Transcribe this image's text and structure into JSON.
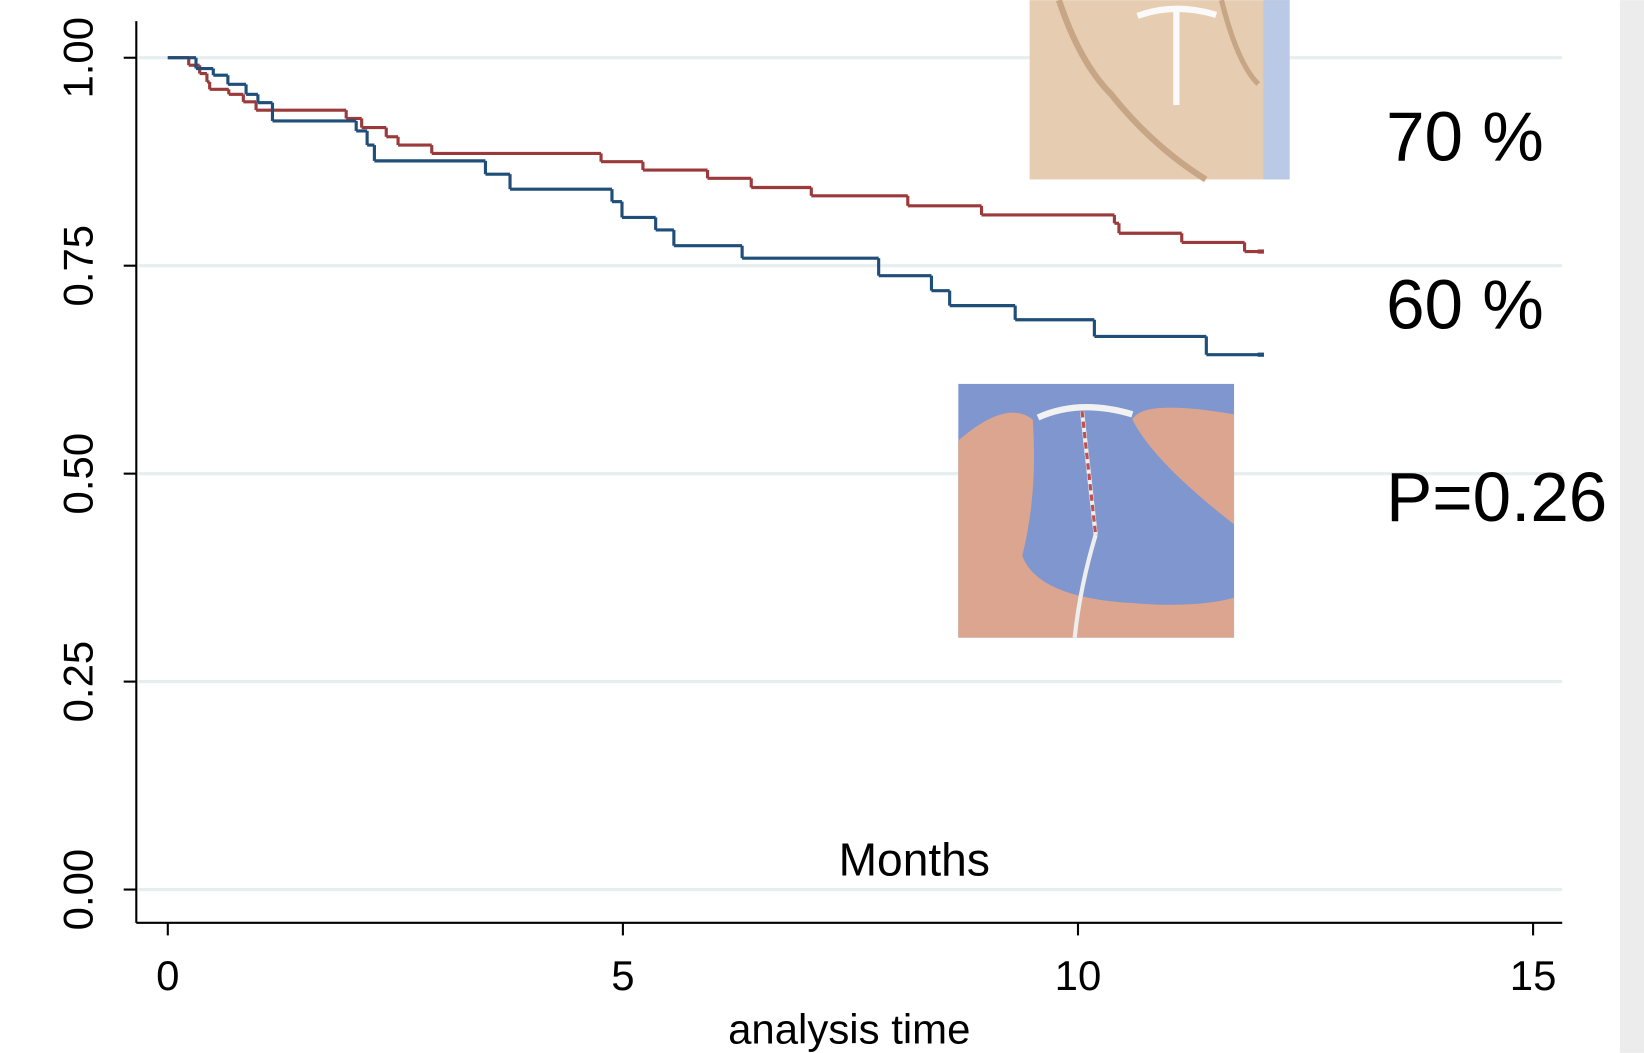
{
  "chart_data": {
    "type": "line",
    "step": true,
    "x_label": "analysis time",
    "annotations": [
      "Months",
      "70 %",
      "60 %",
      "P=0.26"
    ],
    "xlim": [
      -0.346,
      15.32
    ],
    "ylim": [
      -0.04,
      1.044
    ],
    "xticks": [
      0,
      5,
      10,
      15
    ],
    "yticks": [
      {
        "value": 0,
        "label": "0.00"
      },
      {
        "value": 0.25,
        "label": "0.25"
      },
      {
        "value": 0.5,
        "label": "0.50"
      },
      {
        "value": 0.75,
        "label": "0.75"
      },
      {
        "value": 1,
        "label": "1.00"
      }
    ],
    "grid": true,
    "series": [
      {
        "color": "#9b3a3a",
        "x": [
          0,
          0.23,
          0.35,
          0.43,
          0.46,
          0.67,
          0.83,
          0.97,
          1.96,
          2.13,
          2.4,
          2.53,
          2.9,
          4.76,
          5.22,
          5.93,
          6.41,
          7.07,
          8.13,
          8.94,
          10.4,
          10.45,
          11.14,
          11.83,
          12.02
        ],
        "values": [
          1,
          0.991,
          0.981,
          0.971,
          0.962,
          0.956,
          0.947,
          0.937,
          0.927,
          0.916,
          0.905,
          0.895,
          0.885,
          0.875,
          0.865,
          0.855,
          0.844,
          0.834,
          0.822,
          0.811,
          0.801,
          0.789,
          0.778,
          0.767,
          0.767
        ]
      },
      {
        "color": "#1f4e79",
        "x": [
          0,
          0.31,
          0.5,
          0.66,
          0.86,
          0.99,
          1.15,
          2.07,
          2.19,
          2.27,
          3.49,
          3.76,
          4.88,
          4.99,
          5.36,
          5.56,
          6.31,
          7.81,
          8.39,
          8.59,
          9.31,
          10.18,
          11.41,
          12.02
        ],
        "values": [
          1,
          0.987,
          0.979,
          0.968,
          0.956,
          0.946,
          0.924,
          0.912,
          0.895,
          0.876,
          0.86,
          0.842,
          0.827,
          0.808,
          0.793,
          0.774,
          0.759,
          0.738,
          0.72,
          0.702,
          0.685,
          0.665,
          0.643,
          0.643
        ]
      }
    ]
  }
}
